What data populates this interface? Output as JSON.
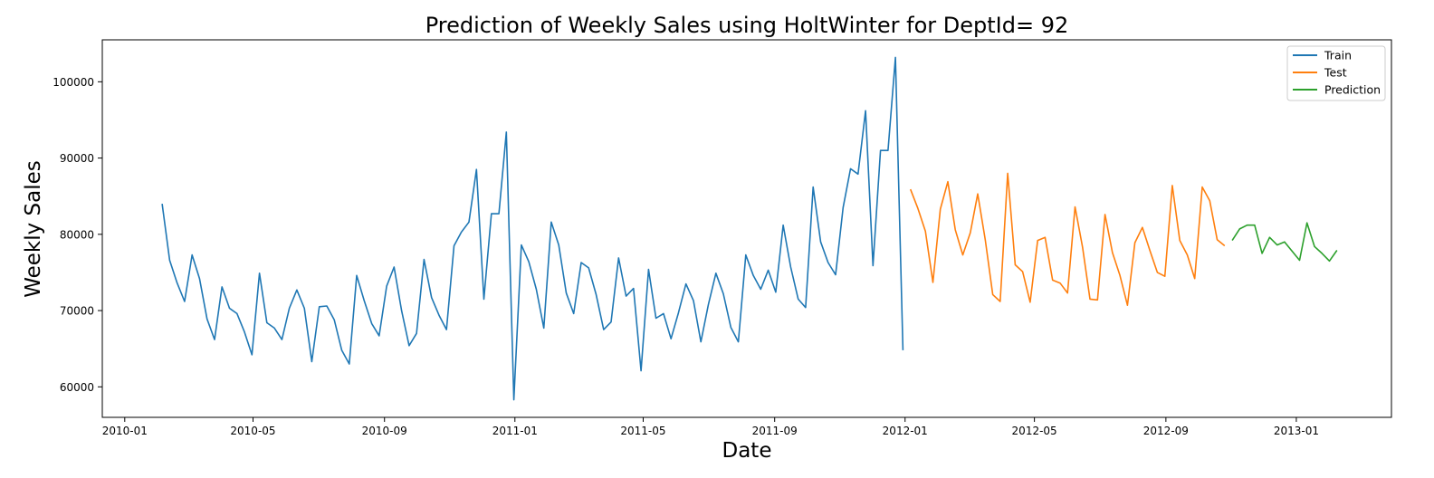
{
  "chart_data": {
    "type": "line",
    "title": "Prediction of Weekly Sales using HoltWinter for DeptId= 92",
    "xlabel": "Date",
    "ylabel": "Weekly Sales",
    "xlim": [
      "2009-12-11",
      "2013-03-31"
    ],
    "ylim": [
      56000,
      105500
    ],
    "x_ticks": [
      "2010-01",
      "2010-05",
      "2010-09",
      "2011-01",
      "2011-05",
      "2011-09",
      "2012-01",
      "2012-05",
      "2012-09",
      "2013-01"
    ],
    "y_ticks": [
      60000,
      70000,
      80000,
      90000,
      100000
    ],
    "grid": false,
    "legend_position": "top-right",
    "series": [
      {
        "name": "Train",
        "color": "#1f77b4",
        "x": [
          "2010-02-05",
          "2010-02-12",
          "2010-02-19",
          "2010-02-26",
          "2010-03-05",
          "2010-03-12",
          "2010-03-19",
          "2010-03-26",
          "2010-04-02",
          "2010-04-09",
          "2010-04-16",
          "2010-04-23",
          "2010-04-30",
          "2010-05-07",
          "2010-05-14",
          "2010-05-21",
          "2010-05-28",
          "2010-06-04",
          "2010-06-11",
          "2010-06-18",
          "2010-06-25",
          "2010-07-02",
          "2010-07-09",
          "2010-07-16",
          "2010-07-23",
          "2010-07-30",
          "2010-08-06",
          "2010-08-13",
          "2010-08-20",
          "2010-08-27",
          "2010-09-03",
          "2010-09-10",
          "2010-09-17",
          "2010-09-24",
          "2010-10-01",
          "2010-10-08",
          "2010-10-15",
          "2010-10-22",
          "2010-10-29",
          "2010-11-05",
          "2010-11-12",
          "2010-11-19",
          "2010-11-26",
          "2010-12-03",
          "2010-12-10",
          "2010-12-17",
          "2010-12-24",
          "2010-12-31",
          "2011-01-07",
          "2011-01-14",
          "2011-01-21",
          "2011-01-28",
          "2011-02-04",
          "2011-02-11",
          "2011-02-18",
          "2011-02-25",
          "2011-03-04",
          "2011-03-11",
          "2011-03-18",
          "2011-03-25",
          "2011-04-01",
          "2011-04-08",
          "2011-04-15",
          "2011-04-22",
          "2011-04-29",
          "2011-05-06",
          "2011-05-13",
          "2011-05-20",
          "2011-05-27",
          "2011-06-03",
          "2011-06-10",
          "2011-06-17",
          "2011-06-24",
          "2011-07-01",
          "2011-07-08",
          "2011-07-15",
          "2011-07-22",
          "2011-07-29",
          "2011-08-05",
          "2011-08-12",
          "2011-08-19",
          "2011-08-26",
          "2011-09-02",
          "2011-09-09",
          "2011-09-16",
          "2011-09-23",
          "2011-09-30",
          "2011-10-07",
          "2011-10-14",
          "2011-10-21",
          "2011-10-28",
          "2011-11-04",
          "2011-11-11",
          "2011-11-18",
          "2011-11-25",
          "2011-12-02",
          "2011-12-09",
          "2011-12-16",
          "2011-12-23",
          "2011-12-30"
        ],
        "y": [
          84000,
          76600,
          73600,
          71200,
          77300,
          74200,
          68900,
          66200,
          73100,
          70300,
          69600,
          67200,
          64200,
          74900,
          68400,
          67700,
          66200,
          70300,
          72700,
          70300,
          63300,
          70500,
          70600,
          68800,
          64800,
          63000,
          74600,
          71300,
          68300,
          66700,
          73200,
          75700,
          70000,
          65400,
          67000,
          76700,
          71700,
          69400,
          67500,
          78500,
          80300,
          81600,
          88500,
          71500,
          82700,
          82700,
          93400,
          58300,
          78600,
          76400,
          72800,
          67700,
          81600,
          78600,
          72300,
          69600,
          76300,
          75600,
          72100,
          67500,
          68500,
          76900,
          71900,
          72900,
          62100,
          75400,
          69000,
          69600,
          66300,
          69700,
          73500,
          71300,
          65900,
          70800,
          74900,
          72200,
          67800,
          65900,
          77300,
          74600,
          72800,
          75300,
          72400,
          81200,
          75700,
          71500,
          70400,
          86200,
          79000,
          76300,
          74700,
          83500,
          88600,
          87900,
          96200,
          75900,
          91000,
          91000,
          103200,
          64800
        ]
      },
      {
        "name": "Test",
        "color": "#ff7f0e",
        "x": [
          "2012-01-06",
          "2012-01-13",
          "2012-01-20",
          "2012-01-27",
          "2012-02-03",
          "2012-02-10",
          "2012-02-17",
          "2012-02-24",
          "2012-03-02",
          "2012-03-09",
          "2012-03-16",
          "2012-03-23",
          "2012-03-30",
          "2012-04-06",
          "2012-04-13",
          "2012-04-20",
          "2012-04-27",
          "2012-05-04",
          "2012-05-11",
          "2012-05-18",
          "2012-05-25",
          "2012-06-01",
          "2012-06-08",
          "2012-06-15",
          "2012-06-22",
          "2012-06-29",
          "2012-07-06",
          "2012-07-13",
          "2012-07-20",
          "2012-07-27",
          "2012-08-03",
          "2012-08-10",
          "2012-08-17",
          "2012-08-24",
          "2012-08-31",
          "2012-09-07",
          "2012-09-14",
          "2012-09-21",
          "2012-09-28",
          "2012-10-05",
          "2012-10-12",
          "2012-10-19",
          "2012-10-26"
        ],
        "y": [
          85900,
          83400,
          80400,
          73700,
          83300,
          86900,
          80600,
          77300,
          80200,
          85300,
          79300,
          72100,
          71200,
          88000,
          76000,
          75100,
          71100,
          79200,
          79600,
          74000,
          73600,
          72300,
          83600,
          78300,
          71500,
          71400,
          82600,
          77600,
          74600,
          70700,
          78900,
          80900,
          77900,
          75000,
          74500,
          86400,
          79200,
          77300,
          74200,
          86200,
          84400,
          79300,
          78500
        ]
      },
      {
        "name": "Prediction",
        "color": "#2ca02c",
        "x": [
          "2012-11-02",
          "2012-11-09",
          "2012-11-16",
          "2012-11-23",
          "2012-11-30",
          "2012-12-07",
          "2012-12-14",
          "2012-12-21",
          "2012-12-28",
          "2013-01-04",
          "2013-01-11",
          "2013-01-18",
          "2013-01-25",
          "2013-02-01",
          "2013-02-08",
          "2013-02-15"
        ],
        "y": [
          79200,
          80700,
          81200,
          81200,
          77500,
          79600,
          78600,
          79000,
          77800,
          76600,
          81500,
          78400,
          77500,
          76500,
          77900,
          null
        ]
      }
    ]
  }
}
